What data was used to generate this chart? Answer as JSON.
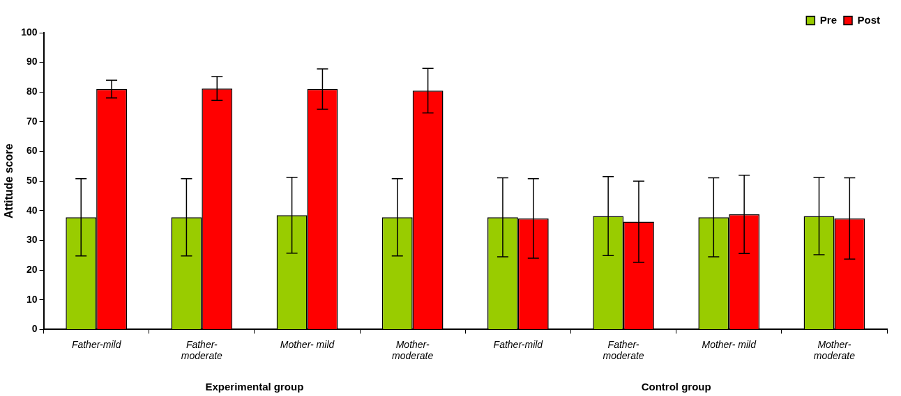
{
  "chart_data": {
    "type": "bar",
    "ylabel": "Attitude score",
    "categories": [
      "Father-mild",
      "Father-moderate",
      "Mother- mild",
      "Mother-moderate",
      "Father-mild",
      "Father-moderate",
      "Mother- mild",
      "Mother-moderate"
    ],
    "series": [
      {
        "name": "Pre",
        "color": "#99cc00",
        "values": [
          37.8,
          37.8,
          38.5,
          37.8,
          37.8,
          38.2,
          37.8,
          38.2
        ],
        "errors": [
          13,
          13,
          12.8,
          13,
          13.3,
          13.3,
          13.3,
          13
        ]
      },
      {
        "name": "Post",
        "color": "#ff0000",
        "values": [
          81,
          81.2,
          81,
          80.5,
          37.4,
          36.3,
          38.8,
          37.4
        ],
        "errors": [
          3,
          4,
          6.8,
          7.5,
          13.4,
          13.7,
          13.2,
          13.7
        ]
      }
    ],
    "ylim": [
      0,
      100
    ],
    "yticks": [
      0,
      10,
      20,
      30,
      40,
      50,
      60,
      70,
      80,
      90,
      100
    ],
    "annotations": [
      "Experimental group",
      "Control group"
    ],
    "legend": "top right",
    "grid": false
  }
}
